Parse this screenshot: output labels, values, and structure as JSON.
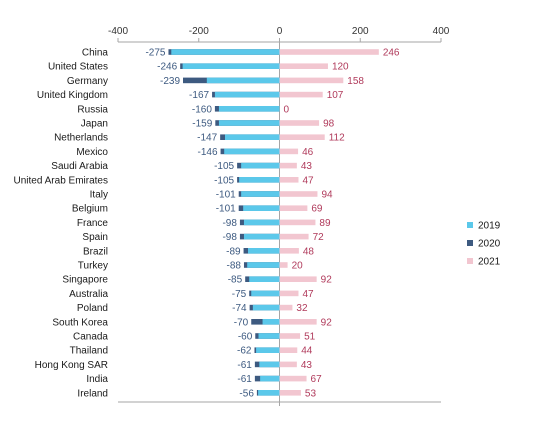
{
  "chart_data": {
    "type": "bar",
    "orientation": "horizontal",
    "title": "",
    "xlabel": "",
    "ylabel": "",
    "xlim": [
      -400,
      400
    ],
    "x_ticks": [
      "-400",
      "-200",
      "0",
      "200",
      "400"
    ],
    "grid": false,
    "legend_position": "right",
    "categories": [
      "China",
      "United States",
      "Germany",
      "United Kingdom",
      "Russia",
      "Japan",
      "Netherlands",
      "Mexico",
      "Saudi Arabia",
      "United Arab Emirates",
      "Italy",
      "Belgium",
      "France",
      "Spain",
      "Brazil",
      "Turkey",
      "Singapore",
      "Australia",
      "Poland",
      "South Korea",
      "Canada",
      "Thailand",
      "Hong Kong SAR",
      "India",
      "Ireland"
    ],
    "series": [
      {
        "name": "2019",
        "color": "#5bc8ea",
        "values": [
          -268,
          -240,
          -180,
          -160,
          -150,
          -150,
          -135,
          -137,
          -95,
          -100,
          -95,
          -90,
          -88,
          -88,
          -78,
          -80,
          -75,
          -70,
          -66,
          -42,
          -52,
          -58,
          -50,
          -48,
          -53
        ]
      },
      {
        "name": "2020",
        "color": "#3d5a80",
        "values": [
          -275,
          -246,
          -239,
          -167,
          -160,
          -159,
          -147,
          -146,
          -105,
          -105,
          -101,
          -101,
          -98,
          -98,
          -89,
          -88,
          -85,
          -75,
          -74,
          -70,
          -60,
          -62,
          -61,
          -61,
          -56
        ]
      },
      {
        "name": "2021",
        "color": "#f2c6d0",
        "values": [
          246,
          120,
          158,
          107,
          0,
          98,
          112,
          46,
          43,
          47,
          94,
          69,
          89,
          72,
          48,
          20,
          92,
          47,
          32,
          92,
          51,
          44,
          43,
          67,
          53
        ]
      }
    ],
    "labels_2020": [
      "-275",
      "-246",
      "-239",
      "-167",
      "-160",
      "-159",
      "-147",
      "-146",
      "-105",
      "-105",
      "-101",
      "-101",
      "-98",
      "-98",
      "-89",
      "-88",
      "-85",
      "-75",
      "-74",
      "-70",
      "-60",
      "-62",
      "-61",
      "-61",
      "-56"
    ],
    "labels_2021": [
      "246",
      "120",
      "158",
      "107",
      "0",
      "98",
      "112",
      "46",
      "43",
      "47",
      "94",
      "69",
      "89",
      "72",
      "48",
      "20",
      "92",
      "47",
      "32",
      "92",
      "51",
      "44",
      "43",
      "67",
      "53"
    ],
    "colors": {
      "negative_label": "#3d5a80",
      "positive_label": "#b03a5b",
      "axis": "#a6a6a6"
    }
  }
}
